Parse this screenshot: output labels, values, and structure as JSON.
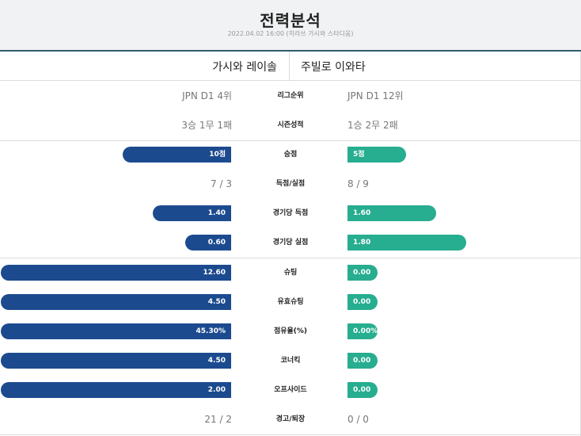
{
  "header": {
    "title": "전력분석",
    "subtitle": "2022.04.02 16:00 (히라쓰 가시와 스타디움)"
  },
  "teams": {
    "home": "가시와 레이솔",
    "away": "주빌로 이와타"
  },
  "colors": {
    "home_bar": "#1c4a8f",
    "away_bar": "#27ad8f",
    "header_bg": "#f1f2f4",
    "header_accent": "#2b5d6e"
  },
  "stats": [
    {
      "label": "리그순위",
      "home": "JPN D1 4위",
      "away": "JPN D1 12위",
      "kind": "text"
    },
    {
      "label": "시즌성적",
      "home": "3승 1무 1패",
      "away": "1승 2무 2패",
      "kind": "text"
    },
    {
      "label": "승점",
      "home": "10점",
      "away": "5점",
      "kind": "bar",
      "home_fill": 0.47,
      "away_fill": 0.25
    },
    {
      "label": "득점/실점",
      "home": "7 / 3",
      "away": "8 / 9",
      "kind": "text"
    },
    {
      "label": "경기당 득점",
      "home": "1.40",
      "away": "1.60",
      "kind": "bar",
      "home_fill": 0.34,
      "away_fill": 0.38
    },
    {
      "label": "경기당 실점",
      "home": "0.60",
      "away": "1.80",
      "kind": "bar",
      "home_fill": 0.2,
      "away_fill": 0.51
    },
    {
      "label": "슈팅",
      "home": "12.60",
      "away": "0.00",
      "kind": "bar",
      "home_fill": 1.0,
      "away_fill": 0.09
    },
    {
      "label": "유효슈팅",
      "home": "4.50",
      "away": "0.00",
      "kind": "bar",
      "home_fill": 1.0,
      "away_fill": 0.09
    },
    {
      "label": "점유율(%)",
      "home": "45.30%",
      "away": "0.00%",
      "kind": "bar",
      "home_fill": 1.0,
      "away_fill": 0.09
    },
    {
      "label": "코너킥",
      "home": "4.50",
      "away": "0.00",
      "kind": "bar",
      "home_fill": 1.0,
      "away_fill": 0.09
    },
    {
      "label": "오프사이드",
      "home": "2.00",
      "away": "0.00",
      "kind": "bar",
      "home_fill": 1.0,
      "away_fill": 0.09
    },
    {
      "label": "경고/퇴장",
      "home": "21 / 2",
      "away": "0 / 0",
      "kind": "text"
    }
  ]
}
